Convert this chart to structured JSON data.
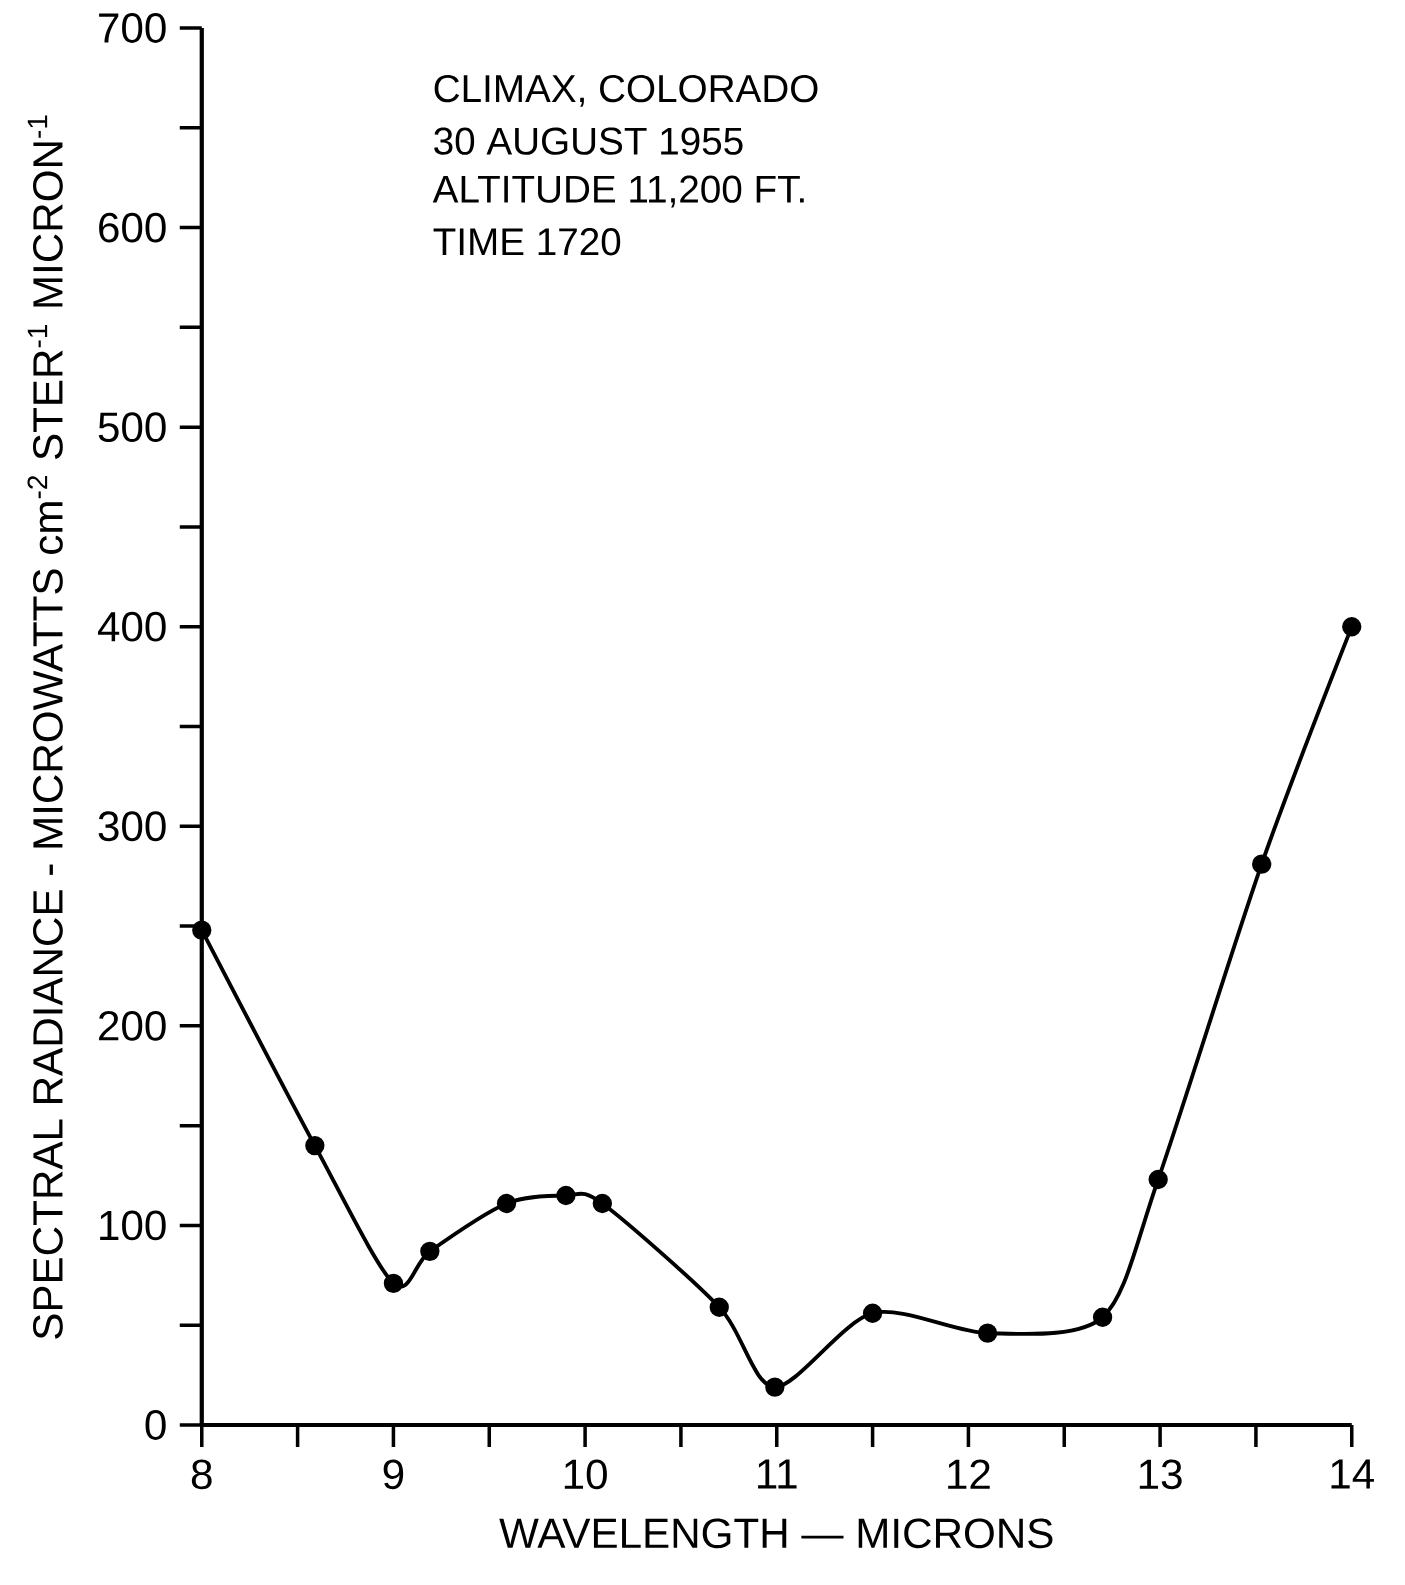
{
  "chart_data": {
    "type": "line",
    "xlabel": "WAVELENGTH — MICRONS",
    "ylabel": "SPECTRAL RADIANCE - MICROWATTS cm$^{-2}$ STER$^{-1}$ MICRON$^{-1}$",
    "annotations": [
      "CLIMAX, COLORADO",
      "30 AUGUST 1955",
      "ALTITUDE 11,200 FT.",
      "TIME  1720"
    ],
    "x": [
      8,
      8.59,
      9,
      9.19,
      9.59,
      9.9,
      10.09,
      10.7,
      10.99,
      11.5,
      12.1,
      12.7,
      12.99,
      13.53,
      14
    ],
    "values": [
      248,
      140,
      71,
      87,
      111,
      115,
      111,
      59,
      19,
      56,
      46,
      54,
      123,
      281,
      400
    ],
    "color": "#000000",
    "marker": "circle",
    "line_style": "solid",
    "grid": false,
    "xlim": [
      8,
      14
    ],
    "ylim": [
      0,
      700
    ],
    "xticks": [
      8,
      9,
      10,
      11,
      12,
      13,
      14
    ],
    "yticks": [
      0,
      100,
      200,
      300,
      400,
      500,
      600,
      700
    ]
  }
}
